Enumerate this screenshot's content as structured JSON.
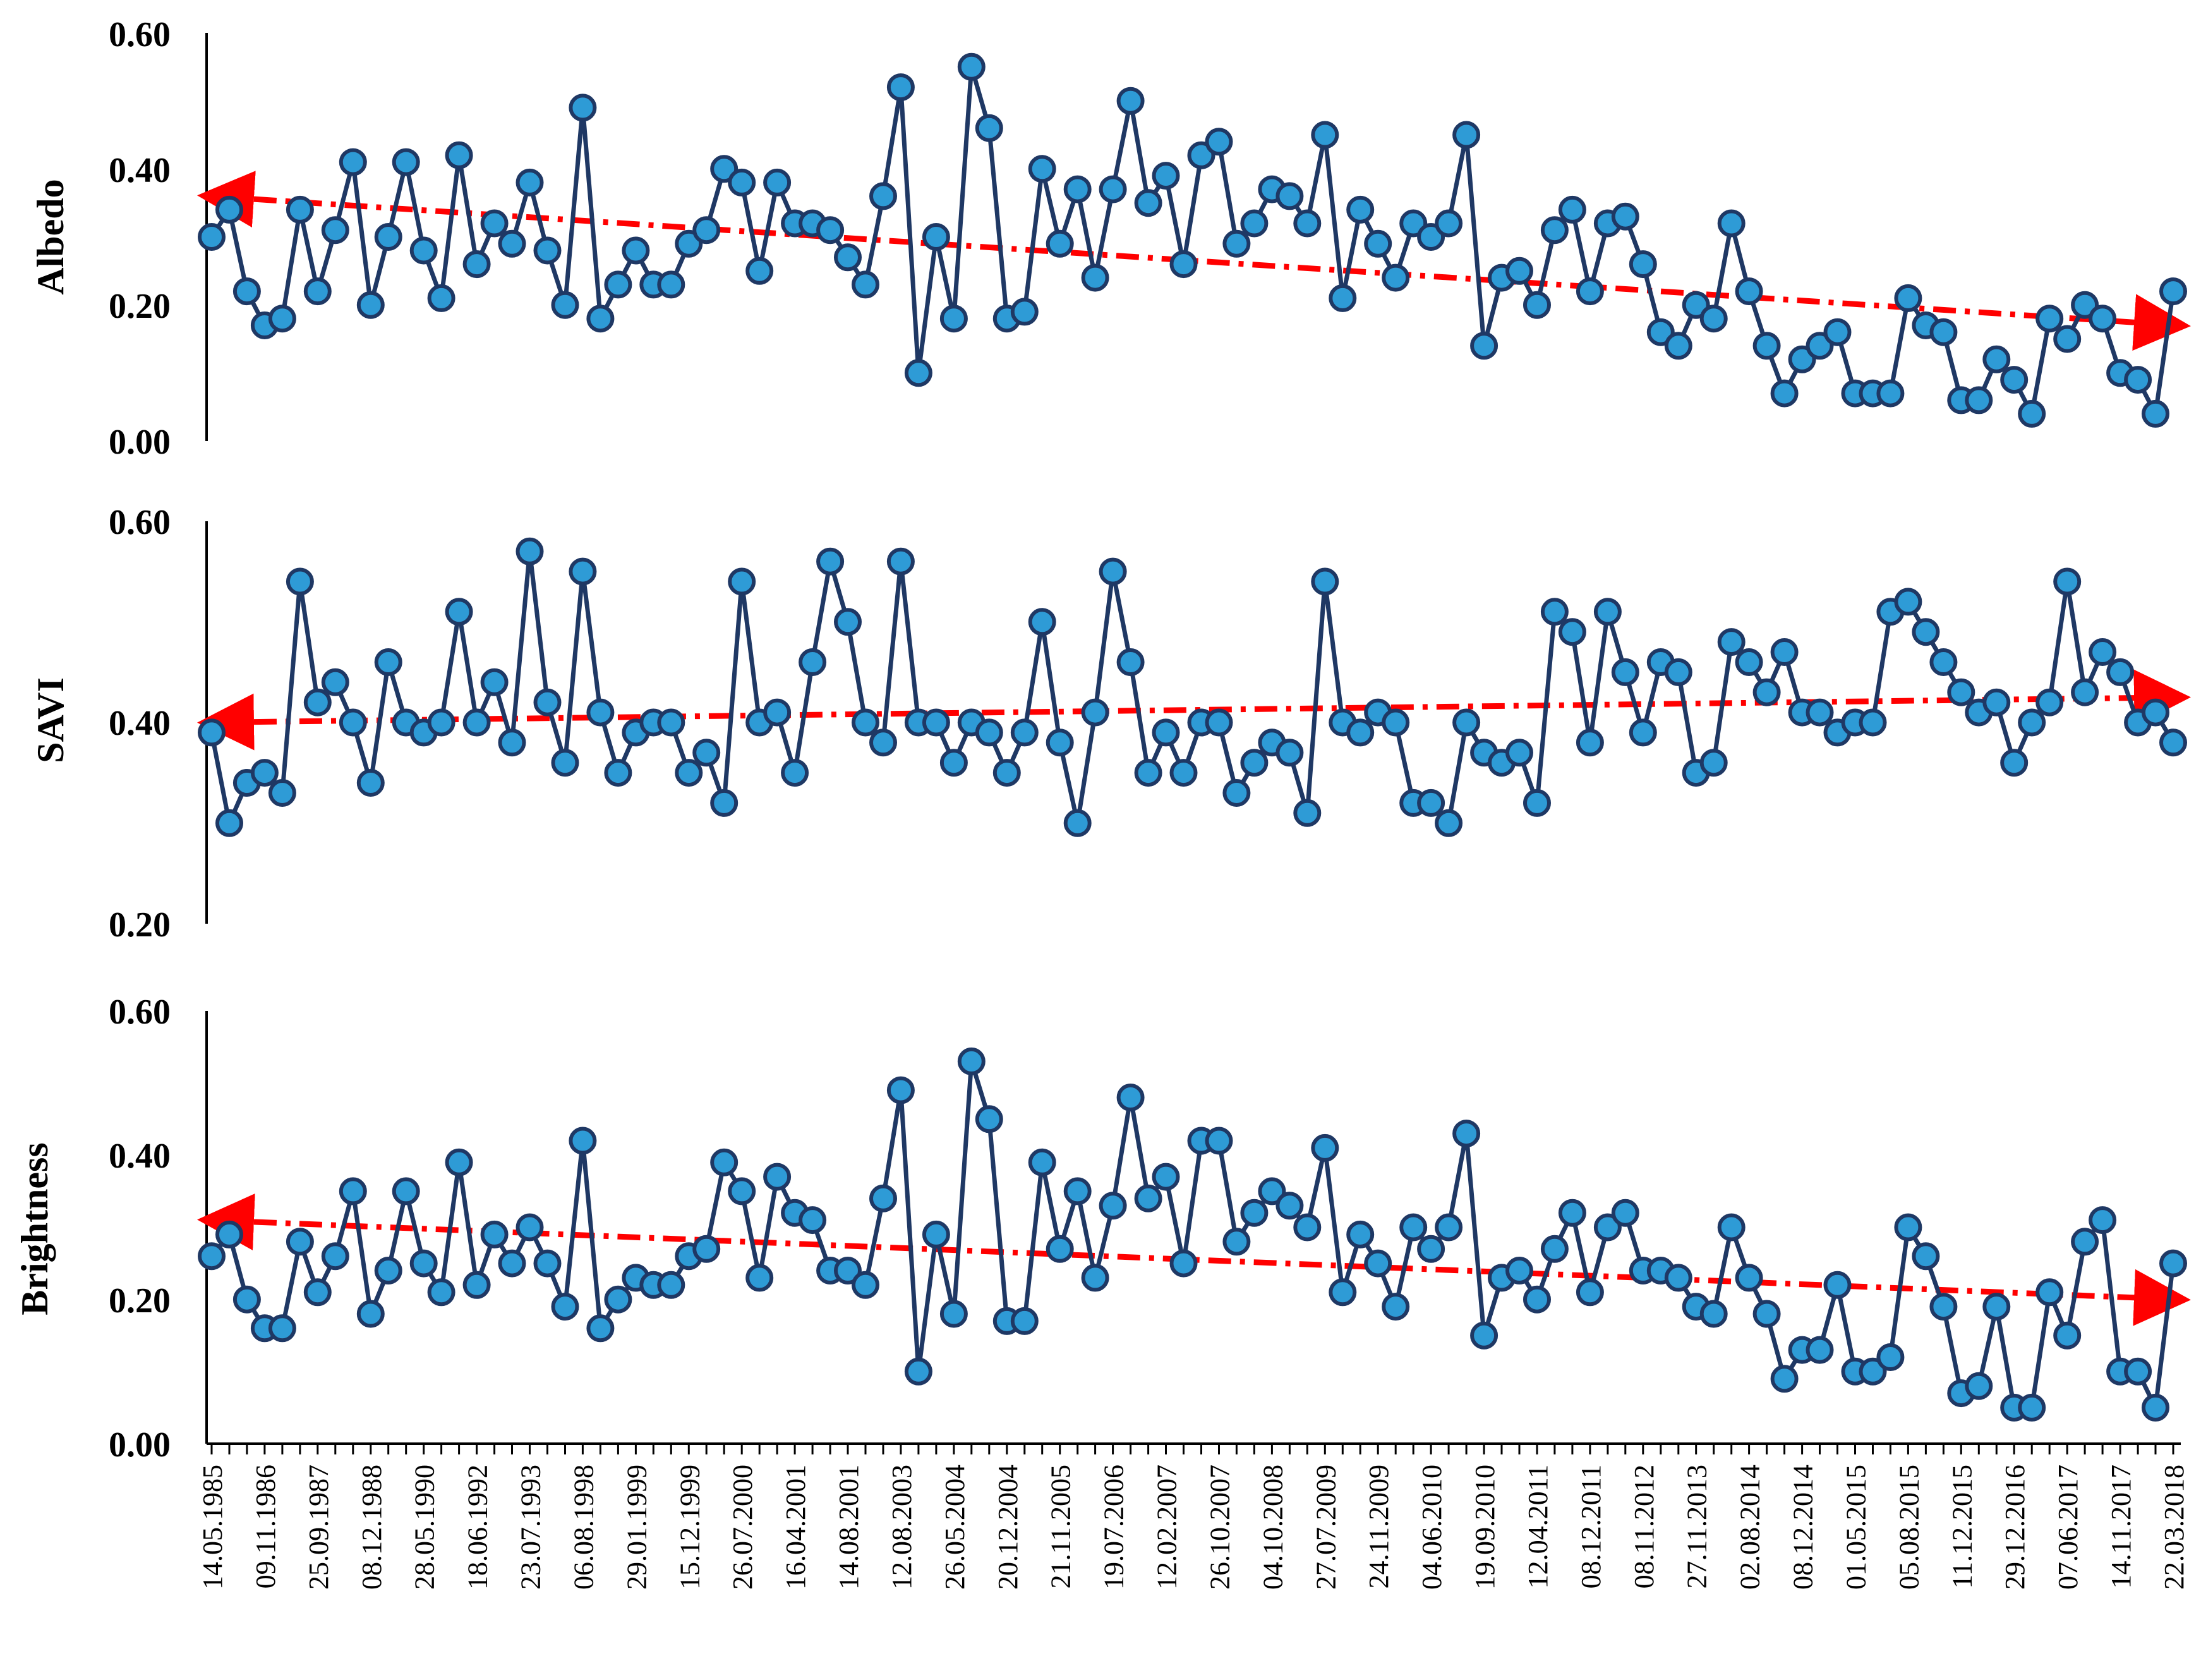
{
  "chart_data": {
    "type": "line",
    "colors": {
      "series_line": "#1f3864",
      "marker_fill": "#2e9bd6",
      "marker_stroke": "#1f3864",
      "trend": "#ff0000",
      "axis": "#000000"
    },
    "x_tick_labels": [
      "14.05.1985",
      "09.11.1986",
      "25.09.1987",
      "08.12.1988",
      "28.05.1990",
      "18.06.1992",
      "23.07.1993",
      "06.08.1998",
      "29.01.1999",
      "15.12.1999",
      "26.07.2000",
      "16.04.2001",
      "14.08.2001",
      "12.08.2003",
      "26.05.2004",
      "20.12.2004",
      "21.11.2005",
      "19.07.2006",
      "12.02.2007",
      "26.10.2007",
      "04.10.2008",
      "27.07.2009",
      "24.11.2009",
      "04.06.2010",
      "19.09.2010",
      "12.04.2011",
      "08.12.2011",
      "08.11.2012",
      "27.11.2013",
      "02.08.2014",
      "08.12.2014",
      "01.05.2015",
      "05.08.2015",
      "11.12.2015",
      "29.12.2016",
      "07.06.2017",
      "14.11.2017",
      "22.03.2018"
    ],
    "panels": [
      {
        "ylabel": "Albedo",
        "yticks": [
          "0.00",
          "0.20",
          "0.40",
          "0.60"
        ],
        "ylim": [
          0,
          0.6
        ],
        "values": [
          0.3,
          0.34,
          0.22,
          0.17,
          0.18,
          0.34,
          0.22,
          0.31,
          0.41,
          0.2,
          0.3,
          0.41,
          0.28,
          0.21,
          0.42,
          0.26,
          0.32,
          0.29,
          0.38,
          0.28,
          0.2,
          0.49,
          0.18,
          0.23,
          0.28,
          0.23,
          0.23,
          0.29,
          0.31,
          0.4,
          0.38,
          0.25,
          0.38,
          0.32,
          0.32,
          0.31,
          0.27,
          0.23,
          0.36,
          0.52,
          0.1,
          0.3,
          0.18,
          0.55,
          0.46,
          0.18,
          0.19,
          0.4,
          0.29,
          0.37,
          0.24,
          0.37,
          0.5,
          0.35,
          0.39,
          0.26,
          0.42,
          0.44,
          0.29,
          0.32,
          0.37,
          0.36,
          0.32,
          0.45,
          0.21,
          0.34,
          0.29,
          0.24,
          0.32,
          0.3,
          0.32,
          0.45,
          0.14,
          0.24,
          0.25,
          0.2,
          0.31,
          0.34,
          0.22,
          0.32,
          0.33,
          0.26,
          0.16,
          0.14,
          0.2,
          0.18,
          0.32,
          0.22,
          0.14,
          0.07,
          0.12,
          0.14,
          0.16,
          0.07,
          0.07,
          0.07,
          0.21,
          0.17,
          0.16,
          0.06,
          0.06,
          0.12,
          0.09,
          0.04,
          0.18,
          0.15,
          0.2,
          0.18,
          0.1,
          0.09,
          0.04,
          0.22
        ],
        "trend": [
          0.36,
          0.17
        ]
      },
      {
        "ylabel": "SAVI",
        "yticks": [
          "0.20",
          "0.40",
          "0.60"
        ],
        "ylim": [
          0.2,
          0.6
        ],
        "values": [
          0.39,
          0.3,
          0.34,
          0.35,
          0.33,
          0.54,
          0.42,
          0.44,
          0.4,
          0.34,
          0.46,
          0.4,
          0.39,
          0.4,
          0.51,
          0.4,
          0.44,
          0.38,
          0.57,
          0.42,
          0.36,
          0.55,
          0.41,
          0.35,
          0.39,
          0.4,
          0.4,
          0.35,
          0.37,
          0.32,
          0.54,
          0.4,
          0.41,
          0.35,
          0.46,
          0.56,
          0.5,
          0.4,
          0.38,
          0.56,
          0.4,
          0.4,
          0.36,
          0.4,
          0.39,
          0.35,
          0.39,
          0.5,
          0.38,
          0.3,
          0.41,
          0.55,
          0.46,
          0.35,
          0.39,
          0.35,
          0.4,
          0.4,
          0.33,
          0.36,
          0.38,
          0.37,
          0.31,
          0.54,
          0.4,
          0.39,
          0.41,
          0.4,
          0.32,
          0.32,
          0.3,
          0.4,
          0.37,
          0.36,
          0.37,
          0.32,
          0.51,
          0.49,
          0.38,
          0.51,
          0.45,
          0.39,
          0.46,
          0.45,
          0.35,
          0.36,
          0.48,
          0.46,
          0.43,
          0.47,
          0.41,
          0.41,
          0.39,
          0.4,
          0.4,
          0.51,
          0.52,
          0.49,
          0.46,
          0.43,
          0.41,
          0.42,
          0.36,
          0.4,
          0.42,
          0.54,
          0.43,
          0.47,
          0.45,
          0.4,
          0.41,
          0.38
        ],
        "trend": [
          0.4,
          0.425
        ]
      },
      {
        "ylabel": "Brightness",
        "yticks": [
          "0.00",
          "0.20",
          "0.40",
          "0.60"
        ],
        "ylim": [
          0,
          0.6
        ],
        "values": [
          0.26,
          0.29,
          0.2,
          0.16,
          0.16,
          0.28,
          0.21,
          0.26,
          0.35,
          0.18,
          0.24,
          0.35,
          0.25,
          0.21,
          0.39,
          0.22,
          0.29,
          0.25,
          0.3,
          0.25,
          0.19,
          0.42,
          0.16,
          0.2,
          0.23,
          0.22,
          0.22,
          0.26,
          0.27,
          0.39,
          0.35,
          0.23,
          0.37,
          0.32,
          0.31,
          0.24,
          0.24,
          0.22,
          0.34,
          0.49,
          0.1,
          0.29,
          0.18,
          0.53,
          0.45,
          0.17,
          0.17,
          0.39,
          0.27,
          0.35,
          0.23,
          0.33,
          0.48,
          0.34,
          0.37,
          0.25,
          0.42,
          0.42,
          0.28,
          0.32,
          0.35,
          0.33,
          0.3,
          0.41,
          0.21,
          0.29,
          0.25,
          0.19,
          0.3,
          0.27,
          0.3,
          0.43,
          0.15,
          0.23,
          0.24,
          0.2,
          0.27,
          0.32,
          0.21,
          0.3,
          0.32,
          0.24,
          0.24,
          0.23,
          0.19,
          0.18,
          0.3,
          0.23,
          0.18,
          0.09,
          0.13,
          0.13,
          0.22,
          0.1,
          0.1,
          0.12,
          0.3,
          0.26,
          0.19,
          0.07,
          0.08,
          0.19,
          0.05,
          0.05,
          0.21,
          0.15,
          0.28,
          0.31,
          0.1,
          0.1,
          0.05,
          0.25
        ],
        "trend": [
          0.31,
          0.2
        ]
      }
    ]
  }
}
